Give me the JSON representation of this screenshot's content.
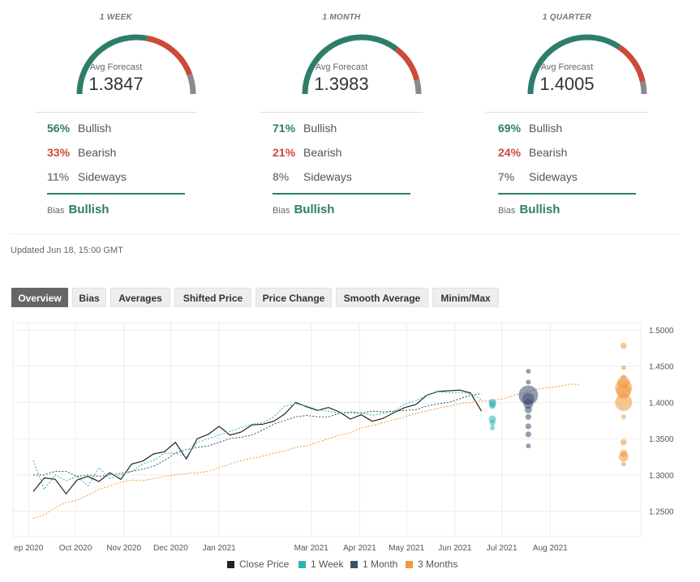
{
  "forecasts": [
    {
      "period": "1 WEEK",
      "avg_label": "Avg Forecast",
      "avg_value": "1.3847",
      "bullish_pct": "56%",
      "bullish_label": "Bullish",
      "bearish_pct": "33%",
      "bearish_label": "Bearish",
      "sideways_pct": "11%",
      "sideways_label": "Sideways",
      "gauge": {
        "bullish": 56,
        "bearish": 33,
        "sideways": 11
      },
      "bias_label": "Bias",
      "bias_value": "Bullish"
    },
    {
      "period": "1 MONTH",
      "avg_label": "Avg Forecast",
      "avg_value": "1.3983",
      "bullish_pct": "71%",
      "bullish_label": "Bullish",
      "bearish_pct": "21%",
      "bearish_label": "Bearish",
      "sideways_pct": "8%",
      "sideways_label": "Sideways",
      "gauge": {
        "bullish": 71,
        "bearish": 21,
        "sideways": 8
      },
      "bias_label": "Bias",
      "bias_value": "Bullish"
    },
    {
      "period": "1 QUARTER",
      "avg_label": "Avg Forecast",
      "avg_value": "1.4005",
      "bullish_pct": "69%",
      "bullish_label": "Bullish",
      "bearish_pct": "24%",
      "bearish_label": "Bearish",
      "sideways_pct": "7%",
      "sideways_label": "Sideways",
      "gauge": {
        "bullish": 69,
        "bearish": 24,
        "sideways": 7
      },
      "bias_label": "Bias",
      "bias_value": "Bullish"
    }
  ],
  "updated": "Updated Jun 18, 15:00 GMT",
  "tabs": [
    "Overview",
    "Bias",
    "Averages",
    "Shifted Price",
    "Price Change",
    "Smooth Average",
    "Minim/Max"
  ],
  "active_tab": "Overview",
  "colors": {
    "bullish": "#2e7d6b",
    "bearish": "#cc4a3a",
    "sideways": "#8a8a8a",
    "close": "#222222",
    "week": "#2bb5b5",
    "month": "#3d4f6e",
    "quarter": "#f0983a"
  },
  "chart_data": {
    "type": "line",
    "x_ticks": [
      "ep 2020",
      "Oct 2020",
      "Nov 2020",
      "Dec 2020",
      "Jan 2021",
      "Mar 2021",
      "Apr 2021",
      "May 2021",
      "Jun 2021",
      "Jul 2021",
      "Aug 2021"
    ],
    "y_ticks": [
      "1.5000",
      "1.4500",
      "1.4000",
      "1.3500",
      "1.3000",
      "1.2500"
    ],
    "ylim": [
      1.215,
      1.51
    ],
    "grid": true,
    "legend_position": "bottom",
    "series": [
      {
        "name": "Close Price",
        "values": [
          [
            "2020-09-04",
            1.277
          ],
          [
            "2020-09-11",
            1.296
          ],
          [
            "2020-09-18",
            1.294
          ],
          [
            "2020-09-25",
            1.274
          ],
          [
            "2020-10-02",
            1.293
          ],
          [
            "2020-10-09",
            1.298
          ],
          [
            "2020-10-16",
            1.291
          ],
          [
            "2020-10-23",
            1.303
          ],
          [
            "2020-10-30",
            1.294
          ],
          [
            "2020-11-06",
            1.315
          ],
          [
            "2020-11-13",
            1.319
          ],
          [
            "2020-11-20",
            1.329
          ],
          [
            "2020-11-27",
            1.332
          ],
          [
            "2020-12-04",
            1.345
          ],
          [
            "2020-12-11",
            1.322
          ],
          [
            "2020-12-18",
            1.35
          ],
          [
            "2020-12-25",
            1.356
          ],
          [
            "2021-01-01",
            1.367
          ],
          [
            "2021-01-08",
            1.355
          ],
          [
            "2021-01-15",
            1.359
          ],
          [
            "2021-01-22",
            1.369
          ],
          [
            "2021-01-29",
            1.37
          ],
          [
            "2021-02-05",
            1.374
          ],
          [
            "2021-02-12",
            1.384
          ],
          [
            "2021-02-19",
            1.4
          ],
          [
            "2021-02-26",
            1.394
          ],
          [
            "2021-03-05",
            1.389
          ],
          [
            "2021-03-12",
            1.393
          ],
          [
            "2021-03-19",
            1.387
          ],
          [
            "2021-03-26",
            1.377
          ],
          [
            "2021-04-02",
            1.383
          ],
          [
            "2021-04-09",
            1.374
          ],
          [
            "2021-04-16",
            1.378
          ],
          [
            "2021-04-23",
            1.386
          ],
          [
            "2021-04-30",
            1.393
          ],
          [
            "2021-05-07",
            1.397
          ],
          [
            "2021-05-14",
            1.41
          ],
          [
            "2021-05-21",
            1.415
          ],
          [
            "2021-05-28",
            1.416
          ],
          [
            "2021-06-04",
            1.417
          ],
          [
            "2021-06-11",
            1.413
          ],
          [
            "2021-06-18",
            1.388
          ]
        ]
      },
      {
        "name": "1 Week",
        "values": [
          [
            "2020-09-04",
            1.32
          ],
          [
            "2020-09-11",
            1.28
          ],
          [
            "2020-09-18",
            1.3
          ],
          [
            "2020-09-25",
            1.292
          ],
          [
            "2020-10-02",
            1.298
          ],
          [
            "2020-10-09",
            1.285
          ],
          [
            "2020-10-16",
            1.31
          ],
          [
            "2020-10-23",
            1.295
          ],
          [
            "2020-10-30",
            1.3
          ],
          [
            "2020-11-06",
            1.305
          ],
          [
            "2020-11-13",
            1.315
          ],
          [
            "2020-11-20",
            1.32
          ],
          [
            "2020-11-27",
            1.33
          ],
          [
            "2020-12-04",
            1.33
          ],
          [
            "2020-12-11",
            1.325
          ],
          [
            "2020-12-18",
            1.345
          ],
          [
            "2020-12-25",
            1.35
          ],
          [
            "2021-01-01",
            1.355
          ],
          [
            "2021-01-08",
            1.36
          ],
          [
            "2021-01-15",
            1.365
          ],
          [
            "2021-01-22",
            1.37
          ],
          [
            "2021-01-29",
            1.372
          ],
          [
            "2021-02-05",
            1.38
          ],
          [
            "2021-02-12",
            1.395
          ],
          [
            "2021-02-19",
            1.398
          ],
          [
            "2021-02-26",
            1.395
          ],
          [
            "2021-03-05",
            1.39
          ],
          [
            "2021-03-12",
            1.388
          ],
          [
            "2021-03-19",
            1.385
          ],
          [
            "2021-03-26",
            1.387
          ],
          [
            "2021-04-02",
            1.386
          ],
          [
            "2021-04-09",
            1.382
          ],
          [
            "2021-04-16",
            1.385
          ],
          [
            "2021-04-23",
            1.388
          ],
          [
            "2021-04-30",
            1.398
          ],
          [
            "2021-05-07",
            1.402
          ],
          [
            "2021-05-14",
            1.41
          ],
          [
            "2021-05-21",
            1.415
          ],
          [
            "2021-05-28",
            1.413
          ],
          [
            "2021-06-04",
            1.414
          ],
          [
            "2021-06-11",
            1.412
          ],
          [
            "2021-06-18",
            1.404
          ]
        ]
      },
      {
        "name": "1 Month",
        "values": [
          [
            "2020-09-04",
            1.3
          ],
          [
            "2020-09-11",
            1.3
          ],
          [
            "2020-09-18",
            1.305
          ],
          [
            "2020-09-25",
            1.305
          ],
          [
            "2020-10-02",
            1.298
          ],
          [
            "2020-10-09",
            1.3
          ],
          [
            "2020-10-16",
            1.298
          ],
          [
            "2020-10-23",
            1.3
          ],
          [
            "2020-10-30",
            1.302
          ],
          [
            "2020-11-06",
            1.305
          ],
          [
            "2020-11-13",
            1.308
          ],
          [
            "2020-11-20",
            1.312
          ],
          [
            "2020-11-27",
            1.32
          ],
          [
            "2020-12-04",
            1.33
          ],
          [
            "2020-12-11",
            1.335
          ],
          [
            "2020-12-18",
            1.338
          ],
          [
            "2020-12-25",
            1.34
          ],
          [
            "2021-01-01",
            1.345
          ],
          [
            "2021-01-08",
            1.35
          ],
          [
            "2021-01-15",
            1.352
          ],
          [
            "2021-01-22",
            1.355
          ],
          [
            "2021-01-29",
            1.362
          ],
          [
            "2021-02-05",
            1.37
          ],
          [
            "2021-02-12",
            1.375
          ],
          [
            "2021-02-19",
            1.38
          ],
          [
            "2021-02-26",
            1.382
          ],
          [
            "2021-03-05",
            1.38
          ],
          [
            "2021-03-12",
            1.38
          ],
          [
            "2021-03-19",
            1.385
          ],
          [
            "2021-03-26",
            1.386
          ],
          [
            "2021-04-02",
            1.385
          ],
          [
            "2021-04-09",
            1.388
          ],
          [
            "2021-04-16",
            1.387
          ],
          [
            "2021-04-23",
            1.388
          ],
          [
            "2021-04-30",
            1.389
          ],
          [
            "2021-05-07",
            1.39
          ],
          [
            "2021-05-14",
            1.395
          ],
          [
            "2021-05-21",
            1.398
          ],
          [
            "2021-05-28",
            1.4
          ],
          [
            "2021-06-04",
            1.405
          ],
          [
            "2021-06-11",
            1.41
          ],
          [
            "2021-06-18",
            1.412
          ]
        ]
      },
      {
        "name": "3 Months",
        "values": [
          [
            "2020-09-04",
            1.24
          ],
          [
            "2020-09-11",
            1.245
          ],
          [
            "2020-09-18",
            1.255
          ],
          [
            "2020-09-25",
            1.262
          ],
          [
            "2020-10-02",
            1.265
          ],
          [
            "2020-10-09",
            1.272
          ],
          [
            "2020-10-16",
            1.28
          ],
          [
            "2020-10-23",
            1.285
          ],
          [
            "2020-10-30",
            1.29
          ],
          [
            "2020-11-06",
            1.293
          ],
          [
            "2020-11-13",
            1.292
          ],
          [
            "2020-11-20",
            1.295
          ],
          [
            "2020-11-27",
            1.298
          ],
          [
            "2020-12-04",
            1.3
          ],
          [
            "2020-12-11",
            1.302
          ],
          [
            "2020-12-18",
            1.303
          ],
          [
            "2020-12-25",
            1.305
          ],
          [
            "2021-01-01",
            1.31
          ],
          [
            "2021-01-08",
            1.315
          ],
          [
            "2021-01-15",
            1.32
          ],
          [
            "2021-01-22",
            1.323
          ],
          [
            "2021-01-29",
            1.326
          ],
          [
            "2021-02-05",
            1.33
          ],
          [
            "2021-02-12",
            1.333
          ],
          [
            "2021-02-19",
            1.338
          ],
          [
            "2021-02-26",
            1.34
          ],
          [
            "2021-03-05",
            1.345
          ],
          [
            "2021-03-12",
            1.35
          ],
          [
            "2021-03-19",
            1.355
          ],
          [
            "2021-03-26",
            1.358
          ],
          [
            "2021-04-02",
            1.365
          ],
          [
            "2021-04-09",
            1.368
          ],
          [
            "2021-04-16",
            1.372
          ],
          [
            "2021-04-23",
            1.376
          ],
          [
            "2021-04-30",
            1.38
          ],
          [
            "2021-05-07",
            1.385
          ],
          [
            "2021-05-14",
            1.388
          ],
          [
            "2021-05-21",
            1.392
          ],
          [
            "2021-05-28",
            1.395
          ],
          [
            "2021-06-04",
            1.398
          ],
          [
            "2021-06-11",
            1.4
          ],
          [
            "2021-06-18",
            1.402
          ],
          [
            "2021-06-25",
            1.403
          ],
          [
            "2021-07-02",
            1.405
          ],
          [
            "2021-07-09",
            1.41
          ],
          [
            "2021-07-16",
            1.414
          ],
          [
            "2021-07-23",
            1.418
          ],
          [
            "2021-07-30",
            1.42
          ],
          [
            "2021-08-06",
            1.422
          ],
          [
            "2021-08-13",
            1.425
          ],
          [
            "2021-08-20",
            1.425
          ]
        ]
      }
    ],
    "forecast_points": [
      {
        "series": "1 Week",
        "date": "2021-06-25",
        "points": [
          [
            1.4,
            1.5
          ],
          [
            1.398,
            1.5
          ],
          [
            1.395,
            1.2
          ],
          [
            1.377,
            1.5
          ],
          [
            1.372,
            1.2
          ],
          [
            1.365,
            1
          ]
        ]
      },
      {
        "series": "1 Month",
        "date": "2021-07-18",
        "points": [
          [
            1.443,
            1
          ],
          [
            1.428,
            1
          ],
          [
            1.41,
            4
          ],
          [
            1.405,
            2.5
          ],
          [
            1.398,
            2
          ],
          [
            1.39,
            1.5
          ],
          [
            1.38,
            1.2
          ],
          [
            1.367,
            1.2
          ],
          [
            1.356,
            1.2
          ],
          [
            1.34,
            1
          ]
        ]
      },
      {
        "series": "3 Months",
        "date": "2021-09-17",
        "points": [
          [
            1.478,
            1.3
          ],
          [
            1.448,
            1
          ],
          [
            1.435,
            1
          ],
          [
            1.428,
            2.5
          ],
          [
            1.42,
            3.5
          ],
          [
            1.415,
            3
          ],
          [
            1.4,
            3.5
          ],
          [
            1.38,
            1
          ],
          [
            1.345,
            1.3
          ],
          [
            1.33,
            1.5
          ],
          [
            1.325,
            2
          ],
          [
            1.315,
            1
          ]
        ]
      }
    ]
  }
}
